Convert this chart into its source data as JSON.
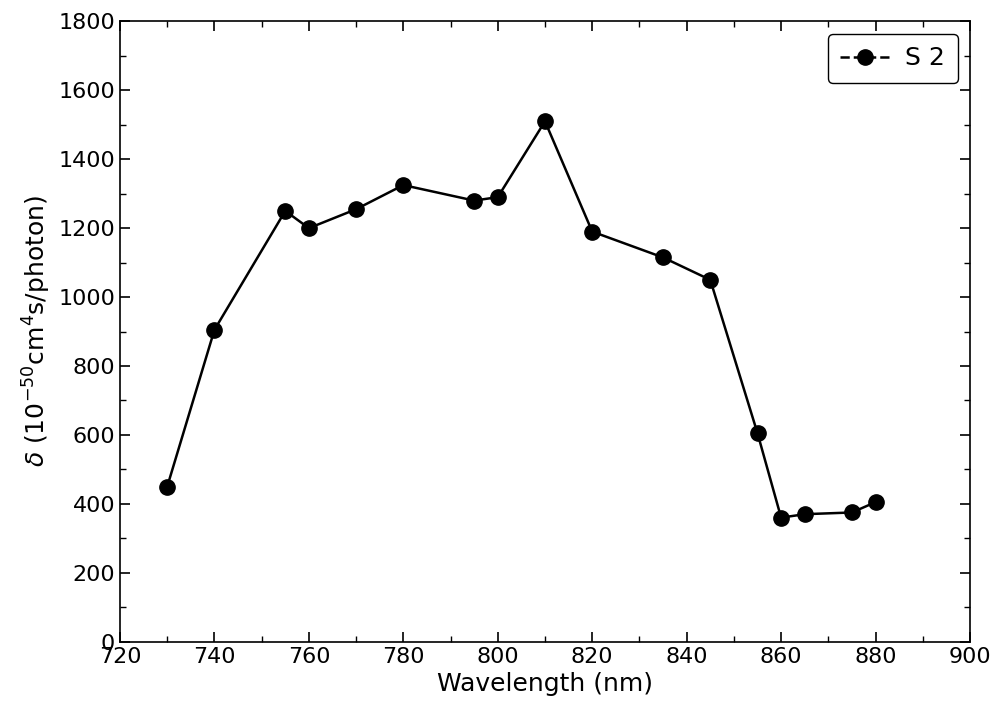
{
  "x": [
    730,
    740,
    755,
    760,
    770,
    780,
    795,
    800,
    810,
    820,
    835,
    845,
    855,
    860,
    865,
    875,
    880
  ],
  "y": [
    450,
    905,
    1250,
    1200,
    1255,
    1325,
    1280,
    1290,
    1510,
    1190,
    1115,
    1050,
    605,
    360,
    370,
    375,
    405
  ],
  "line_color": "#000000",
  "marker": "o",
  "marker_size": 11,
  "marker_facecolor": "#000000",
  "linestyle": "-",
  "linewidth": 1.8,
  "legend_label": "S 2",
  "xlabel": "Wavelength (nm)",
  "xlim": [
    720,
    900
  ],
  "ylim": [
    0,
    1800
  ],
  "xticks": [
    720,
    740,
    760,
    780,
    800,
    820,
    840,
    860,
    880,
    900
  ],
  "yticks": [
    0,
    200,
    400,
    600,
    800,
    1000,
    1200,
    1400,
    1600,
    1800
  ],
  "background_color": "#ffffff",
  "label_fontsize": 18,
  "tick_fontsize": 16,
  "legend_fontsize": 18
}
